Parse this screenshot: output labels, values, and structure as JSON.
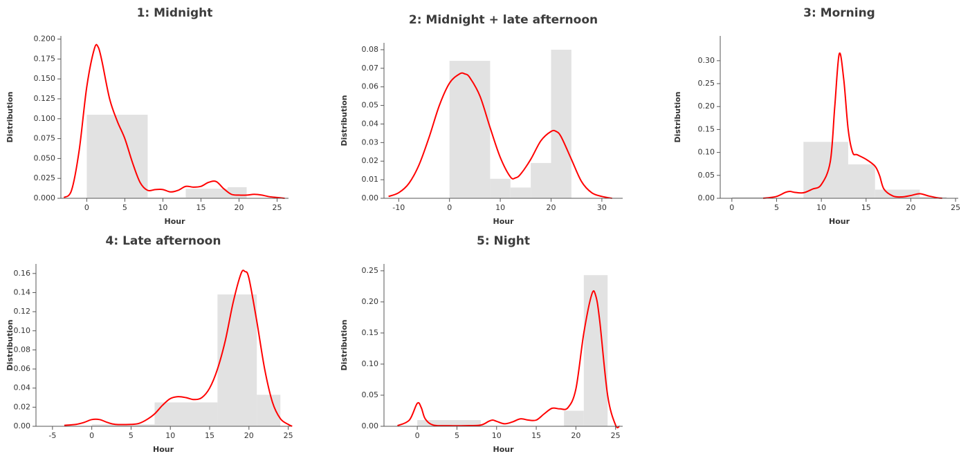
{
  "chart_data": [
    {
      "type": "histogram",
      "title": "1: Midnight",
      "xlabel": "Hour",
      "ylabel": "Distribution",
      "xlim": [
        -3.4,
        26.5
      ],
      "xticks": [
        0,
        5,
        10,
        15,
        20,
        25
      ],
      "ylim": [
        0,
        0.204
      ],
      "yticks": [
        {
          "value": 0,
          "label": "0.000"
        },
        0.025,
        {
          "value": 0.05,
          "label": "0.050"
        },
        0.075,
        {
          "value": 0.1,
          "label": "0.100"
        },
        0.125,
        {
          "value": 0.15,
          "label": "0.150"
        },
        0.175,
        {
          "value": 0.2,
          "label": "0.200"
        }
      ],
      "bins": [
        0,
        8,
        13,
        18.5,
        21
      ],
      "counts": [
        0.105,
        0.001,
        0.012,
        0.014
      ],
      "color": "#e2e2e2",
      "line": {
        "color": "#ff0000",
        "x": [
          -3,
          -2,
          -1,
          0,
          1,
          1.5,
          2,
          3,
          4,
          5,
          6,
          7,
          8,
          9,
          10,
          11,
          12,
          13,
          14,
          15,
          16,
          17,
          18,
          19,
          20,
          21,
          22,
          23,
          24,
          25,
          26
        ],
        "values": [
          0.001,
          0.01,
          0.06,
          0.14,
          0.188,
          0.19,
          0.172,
          0.125,
          0.097,
          0.075,
          0.045,
          0.02,
          0.01,
          0.011,
          0.011,
          0.008,
          0.01,
          0.015,
          0.014,
          0.015,
          0.02,
          0.021,
          0.012,
          0.005,
          0.004,
          0.004,
          0.005,
          0.004,
          0.002,
          0.001,
          0
        ]
      }
    },
    {
      "type": "histogram",
      "title": "2: Midnight + late afternoon",
      "xlabel": "Hour",
      "ylabel": "Distribution",
      "xlim": [
        -12.9,
        34.1
      ],
      "xticks": [
        -10,
        0,
        10,
        20,
        30
      ],
      "ylim": [
        0,
        0.0837
      ],
      "yticks": [
        {
          "value": 0,
          "label": "0.00"
        },
        0.01,
        0.02,
        0.03,
        0.04,
        0.05,
        0.06,
        0.07,
        0.08
      ],
      "bins": [
        0,
        8,
        12,
        16,
        20,
        24
      ],
      "counts": [
        0.074,
        0.0105,
        0.0058,
        0.019,
        0.08
      ],
      "color": "#e2e2e2",
      "line": {
        "color": "#ff0000",
        "x": [
          -12,
          -10,
          -8,
          -6,
          -4,
          -2,
          0,
          2,
          3,
          4,
          6,
          8,
          10,
          12,
          13,
          14,
          16,
          18,
          20,
          21,
          22,
          24,
          26,
          28,
          30,
          32
        ],
        "values": [
          0.001,
          0.003,
          0.008,
          0.018,
          0.033,
          0.05,
          0.062,
          0.067,
          0.067,
          0.065,
          0.055,
          0.038,
          0.022,
          0.0115,
          0.011,
          0.013,
          0.021,
          0.031,
          0.036,
          0.036,
          0.033,
          0.021,
          0.009,
          0.003,
          0.001,
          0
        ]
      }
    },
    {
      "type": "histogram",
      "title": "3: Morning",
      "xlabel": "Hour",
      "ylabel": "Distribution",
      "xlim": [
        -1.3,
        25.3
      ],
      "xticks": [
        0,
        5,
        10,
        15,
        20,
        25
      ],
      "ylim": [
        0,
        0.354
      ],
      "yticks": [
        {
          "value": 0,
          "label": "0.00"
        },
        0.05,
        {
          "value": 0.1,
          "label": "0.10"
        },
        0.15,
        {
          "value": 0.2,
          "label": "0.20"
        },
        0.25,
        {
          "value": 0.3,
          "label": "0.30"
        }
      ],
      "bins": [
        0,
        4,
        8,
        13,
        16,
        21,
        24
      ],
      "counts": [
        0.003,
        0,
        0.123,
        0.074,
        0.019,
        0.003
      ],
      "color": "#e2e2e2",
      "line": {
        "color": "#ff0000",
        "x": [
          3.5,
          4,
          5,
          6,
          6.5,
          7,
          8,
          9,
          10,
          11,
          11.5,
          12,
          12.5,
          13,
          13.5,
          14,
          15,
          16,
          16.5,
          17,
          18,
          19,
          20,
          21,
          22,
          23,
          23.5
        ],
        "values": [
          0,
          0.001,
          0.004,
          0.013,
          0.015,
          0.013,
          0.012,
          0.02,
          0.03,
          0.08,
          0.2,
          0.315,
          0.26,
          0.15,
          0.1,
          0.095,
          0.085,
          0.07,
          0.05,
          0.02,
          0.005,
          0.003,
          0.006,
          0.01,
          0.005,
          0.001,
          0
        ]
      }
    },
    {
      "type": "histogram",
      "title": "4: Late afternoon",
      "xlabel": "Hour",
      "ylabel": "Distribution",
      "xlim": [
        -7.1,
        25.3
      ],
      "xticks": [
        -5,
        0,
        5,
        10,
        15,
        20,
        25
      ],
      "ylim": [
        0,
        0.17
      ],
      "yticks": [
        {
          "value": 0,
          "label": "0.00"
        },
        0.02,
        0.04,
        0.06,
        0.08,
        {
          "value": 0.1,
          "label": "0.10"
        },
        0.12,
        0.14,
        0.16
      ],
      "bins": [
        0,
        8,
        16,
        21,
        24
      ],
      "counts": [
        0.002,
        0.025,
        0.138,
        0.033
      ],
      "color": "#e2e2e2",
      "line": {
        "color": "#ff0000",
        "x": [
          -3.5,
          -2,
          -1,
          0,
          1,
          2,
          3,
          5,
          6,
          7,
          8,
          9,
          10,
          11,
          12,
          13,
          14,
          15,
          16,
          17,
          18,
          19,
          19.5,
          20,
          21,
          22,
          23,
          24,
          25,
          25.5
        ],
        "values": [
          0.001,
          0.002,
          0.004,
          0.007,
          0.007,
          0.004,
          0.002,
          0.002,
          0.003,
          0.007,
          0.013,
          0.022,
          0.029,
          0.031,
          0.03,
          0.028,
          0.03,
          0.04,
          0.06,
          0.09,
          0.13,
          0.16,
          0.162,
          0.155,
          0.11,
          0.06,
          0.025,
          0.008,
          0.002,
          0
        ]
      }
    },
    {
      "type": "histogram",
      "title": "5: Night",
      "xlabel": "Hour",
      "ylabel": "Distribution",
      "xlim": [
        -4.2,
        25.9
      ],
      "xticks": [
        0,
        5,
        10,
        15,
        20,
        25
      ],
      "ylim": [
        0,
        0.261
      ],
      "yticks": [
        {
          "value": 0,
          "label": "0.00"
        },
        0.05,
        {
          "value": 0.1,
          "label": "0.10"
        },
        0.15,
        {
          "value": 0.2,
          "label": "0.20"
        },
        0.25
      ],
      "bins": [
        0,
        8,
        18.5,
        21,
        24
      ],
      "counts": [
        0.01,
        0,
        0.025,
        0.243
      ],
      "color": "#e2e2e2",
      "line": {
        "color": "#ff0000",
        "x": [
          -2.5,
          -1,
          0,
          0.5,
          1,
          2,
          4,
          6,
          8,
          9,
          9.5,
          10,
          11,
          12,
          13,
          14,
          15,
          16,
          17,
          18,
          19,
          20,
          21,
          22,
          22.5,
          23,
          24,
          25,
          25.5
        ],
        "values": [
          0.001,
          0.01,
          0.037,
          0.03,
          0.012,
          0.002,
          0.001,
          0.001,
          0.002,
          0.008,
          0.01,
          0.008,
          0.004,
          0.007,
          0.012,
          0.01,
          0.01,
          0.02,
          0.029,
          0.028,
          0.03,
          0.06,
          0.15,
          0.212,
          0.21,
          0.17,
          0.05,
          0.002,
          0
        ]
      }
    }
  ]
}
